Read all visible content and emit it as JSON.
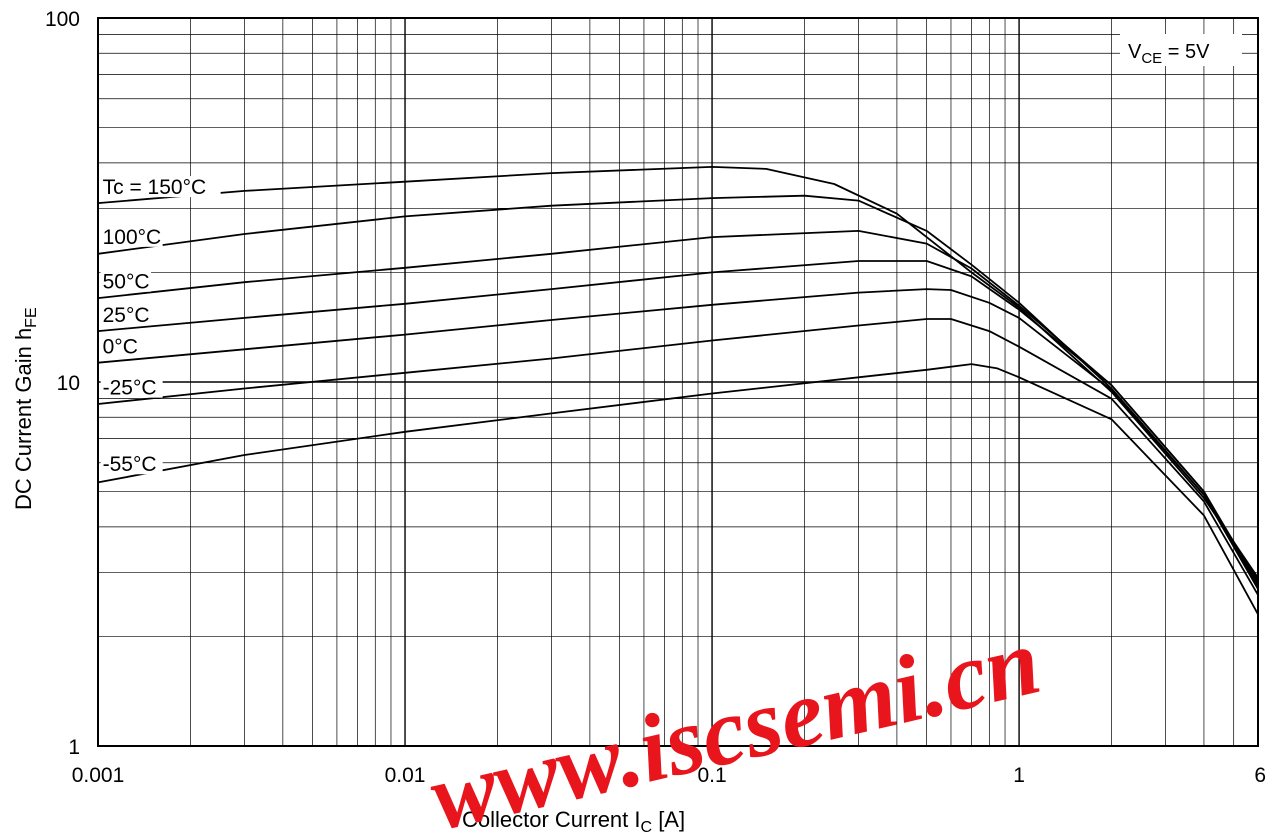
{
  "chart_data": {
    "type": "line",
    "xlabel": "Collector Current  I",
    "xlabel_sub": "C",
    "xlabel_unit": " [A]",
    "ylabel": "DC Current Gain  h",
    "ylabel_sub": "FE",
    "xscale": "log",
    "yscale": "log",
    "xlim": [
      0.001,
      6
    ],
    "ylim": [
      1,
      100
    ],
    "grid": true,
    "x_ticks": [
      0.001,
      0.01,
      0.1,
      1,
      6
    ],
    "x_tick_labels": [
      "0.001",
      "0.01",
      "0.1",
      "1",
      "6"
    ],
    "y_ticks": [
      1,
      10,
      100
    ],
    "y_tick_labels": [
      "1",
      "10",
      "100"
    ],
    "annotation": {
      "prefix": "V",
      "sub": "CE",
      "suffix": " = 5V"
    },
    "series": [
      {
        "name": "Tc = 150°C",
        "x": [
          0.001,
          0.003,
          0.01,
          0.03,
          0.1,
          0.15,
          0.25,
          0.4,
          0.7,
          1.0,
          2.0,
          4.0,
          6.0
        ],
        "y": [
          31,
          33.5,
          35.5,
          37.5,
          39,
          38.5,
          35,
          29,
          20,
          16,
          9.4,
          4.8,
          2.9
        ]
      },
      {
        "name": "100°C",
        "x": [
          0.001,
          0.003,
          0.01,
          0.03,
          0.1,
          0.2,
          0.3,
          0.5,
          0.7,
          1.0,
          2.0,
          4.0,
          6.0
        ],
        "y": [
          22.5,
          25.5,
          28.5,
          30.5,
          32,
          32.5,
          31.5,
          26,
          21,
          16.5,
          9.6,
          4.9,
          2.85
        ]
      },
      {
        "name": "50°C",
        "x": [
          0.001,
          0.003,
          0.01,
          0.03,
          0.1,
          0.3,
          0.5,
          0.7,
          1.0,
          2.0,
          4.0,
          6.0
        ],
        "y": [
          17,
          18.8,
          20.6,
          22.5,
          25,
          26,
          24,
          20.5,
          16.2,
          9.8,
          5,
          2.8
        ]
      },
      {
        "name": "25°C",
        "x": [
          0.001,
          0.003,
          0.01,
          0.03,
          0.1,
          0.3,
          0.5,
          0.7,
          1.0,
          2.0,
          4.0,
          6.0
        ],
        "y": [
          13.8,
          15,
          16.4,
          18,
          20,
          21.5,
          21.5,
          19.5,
          15.8,
          9.8,
          5,
          2.75
        ]
      },
      {
        "name": "0°C",
        "x": [
          0.001,
          0.003,
          0.01,
          0.03,
          0.1,
          0.3,
          0.5,
          0.6,
          0.8,
          1.0,
          2.0,
          4.0,
          6.0
        ],
        "y": [
          11.3,
          12.3,
          13.5,
          14.8,
          16.3,
          17.6,
          18,
          17.9,
          16.5,
          15,
          9.5,
          4.9,
          2.7
        ]
      },
      {
        "name": "-25°C",
        "x": [
          0.001,
          0.003,
          0.01,
          0.03,
          0.1,
          0.3,
          0.5,
          0.6,
          0.8,
          1.0,
          2.0,
          4.0,
          6.0
        ],
        "y": [
          8.7,
          9.6,
          10.6,
          11.6,
          13,
          14.3,
          14.9,
          14.9,
          13.8,
          12.5,
          9,
          4.7,
          2.6
        ]
      },
      {
        "name": "-55°C",
        "x": [
          0.001,
          0.003,
          0.01,
          0.03,
          0.1,
          0.3,
          0.5,
          0.7,
          0.85,
          1.0,
          2.0,
          4.0,
          6.0
        ],
        "y": [
          5.3,
          6.3,
          7.3,
          8.2,
          9.3,
          10.3,
          10.8,
          11.2,
          10.9,
          10.3,
          7.9,
          4.3,
          2.3
        ]
      }
    ]
  },
  "watermark": "www.iscsemi.cn"
}
